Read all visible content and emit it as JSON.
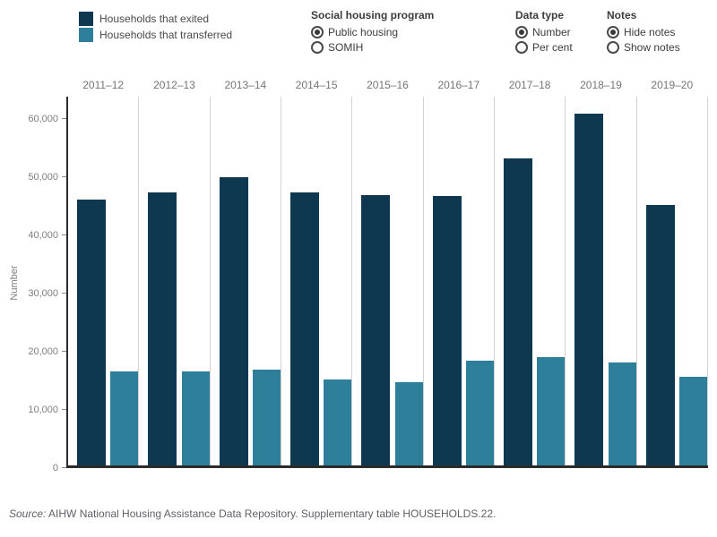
{
  "legend": {
    "items": [
      {
        "id": "exited",
        "label": "Households that exited",
        "color": "#0d384f"
      },
      {
        "id": "transferred",
        "label": "Households that transferred",
        "color": "#2e7f99"
      }
    ]
  },
  "controls": [
    {
      "title": "Social housing program",
      "options": [
        {
          "label": "Public housing",
          "selected": true
        },
        {
          "label": "SOMIH",
          "selected": false
        }
      ]
    },
    {
      "title": "Data type",
      "options": [
        {
          "label": "Number",
          "selected": true
        },
        {
          "label": "Per cent",
          "selected": false
        }
      ]
    },
    {
      "title": "Notes",
      "options": [
        {
          "label": "Hide notes",
          "selected": true
        },
        {
          "label": "Show notes",
          "selected": false
        }
      ]
    }
  ],
  "chart_data": {
    "type": "bar",
    "categories": [
      "2011–12",
      "2012–13",
      "2013–14",
      "2014–15",
      "2015–16",
      "2016–17",
      "2017–18",
      "2018–19",
      "2019–20"
    ],
    "series": [
      {
        "name": "Households that exited",
        "color": "#0d384f",
        "values": [
          45700,
          46900,
          49600,
          46900,
          46500,
          46300,
          52800,
          60400,
          44700
        ]
      },
      {
        "name": "Households that transferred",
        "color": "#2e7f99",
        "values": [
          16100,
          16100,
          16400,
          14800,
          14300,
          18000,
          18600,
          17700,
          15200
        ]
      }
    ],
    "xlabel": "",
    "ylabel": "Number",
    "ylim": [
      0,
      63800
    ],
    "yticks": [
      0,
      10000,
      20000,
      30000,
      40000,
      50000,
      60000
    ],
    "ytick_labels": [
      "0",
      "10,000",
      "20,000",
      "30,000",
      "40,000",
      "50,000",
      "60,000"
    ],
    "grid": "vertical pane dividers only, no horizontal gridlines",
    "legend_position": "top-left",
    "x_labels_position": "top"
  },
  "source": {
    "prefix": "Source:",
    "text": " AIHW National Housing Assistance Data Repository. Supplementary table HOUSEHOLDS.22."
  }
}
